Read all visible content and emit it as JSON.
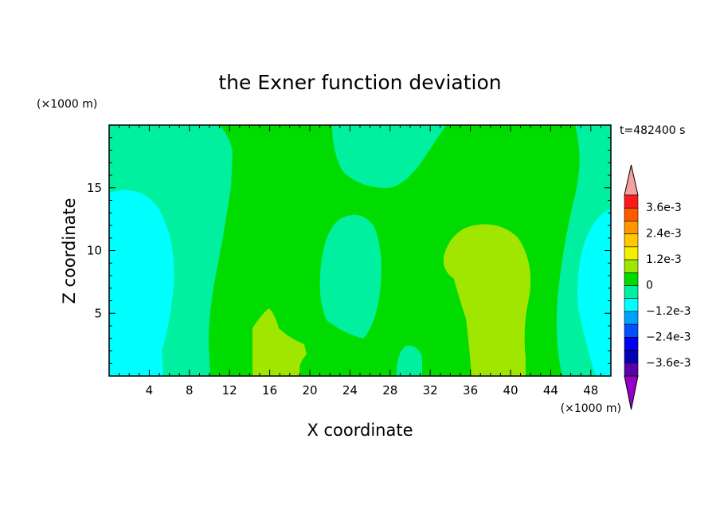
{
  "chart_data": {
    "type": "heatmap",
    "title": "the Exner function deviation",
    "xlabel": "X coordinate",
    "ylabel": "Z coordinate",
    "x_unit": "(×1000 m)",
    "z_unit": "(×1000 m)",
    "time_label": "t=482400 s",
    "xlim": [
      0,
      50
    ],
    "ylim": [
      0,
      20
    ],
    "x_ticks": [
      4,
      8,
      12,
      16,
      20,
      24,
      28,
      32,
      36,
      40,
      44,
      48
    ],
    "y_ticks": [
      5,
      10,
      15
    ],
    "colorbar": {
      "labels": [
        "3.6e-3",
        "2.4e-3",
        "1.2e-3",
        "0",
        "-1.2e-3",
        "-2.4e-3",
        "-3.6e-3"
      ],
      "label_values": [
        0.0036,
        0.0024,
        0.0012,
        0,
        -0.0012,
        -0.0024,
        -0.0036
      ],
      "levels_top_to_bottom": [
        0.0036,
        0.003,
        0.0024,
        0.0018,
        0.0012,
        0.0006,
        0,
        -0.0006,
        -0.0012,
        -0.0018,
        -0.0024,
        -0.003,
        -0.0036
      ],
      "colors_top_to_bottom": [
        "#ff1a1a",
        "#ff5a00",
        "#ff9600",
        "#ffc800",
        "#f0f000",
        "#a0e600",
        "#00dc00",
        "#00f0a0",
        "#00ffff",
        "#00a0ff",
        "#0050ff",
        "#0000f0",
        "#0000b4",
        "#5a00aa"
      ],
      "over_color": "#f4a0a0",
      "under_color": "#9600c8"
    },
    "regions": [
      {
        "name": "background",
        "level": 0,
        "color": "#00dc00"
      },
      {
        "name": "left-band",
        "level": -0.0006,
        "color": "#00f0a0"
      },
      {
        "name": "left-core",
        "level": -0.0012,
        "color": "#00ffff"
      },
      {
        "name": "upper-middle",
        "level": -0.0006,
        "color": "#00f0a0"
      },
      {
        "name": "middle-column",
        "level": -0.0006,
        "color": "#00f0a0"
      },
      {
        "name": "low-middle-bump",
        "level": -0.0006,
        "color": "#00f0a0"
      },
      {
        "name": "right-band",
        "level": -0.0006,
        "color": "#00f0a0"
      },
      {
        "name": "right-core",
        "level": -0.0012,
        "color": "#00ffff"
      },
      {
        "name": "positive-small",
        "level": 0.0006,
        "color": "#a0e600"
      },
      {
        "name": "positive-large",
        "level": 0.0006,
        "color": "#a0e600"
      }
    ]
  }
}
